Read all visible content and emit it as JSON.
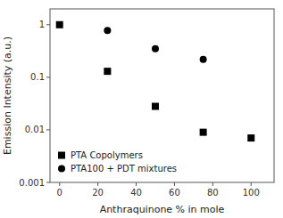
{
  "chart_data": {
    "type": "scatter",
    "xlabel": "Anthraquinone % in mole",
    "ylabel": "Emission Intensity (a.u.)",
    "xlim": [
      -5,
      112
    ],
    "xticks": [
      0,
      20,
      40,
      60,
      80,
      100
    ],
    "ylim": [
      0.001,
      2.0
    ],
    "yticks": [
      0.001,
      0.01,
      0.1,
      1
    ],
    "log": "y",
    "grid": false,
    "legend": "lower left",
    "background_color": "#ffffff",
    "series": [
      {
        "name": "PTA Copolymers",
        "marker": "square",
        "color": "black",
        "x": [
          0,
          25,
          50,
          75,
          100
        ],
        "values": [
          1.0,
          0.13,
          0.028,
          0.009,
          0.007
        ]
      },
      {
        "name": "PTA100 + PDT mixtures",
        "marker": "circle",
        "color": "black",
        "x": [
          25,
          50,
          75
        ],
        "values": [
          0.78,
          0.35,
          0.22
        ]
      }
    ]
  }
}
